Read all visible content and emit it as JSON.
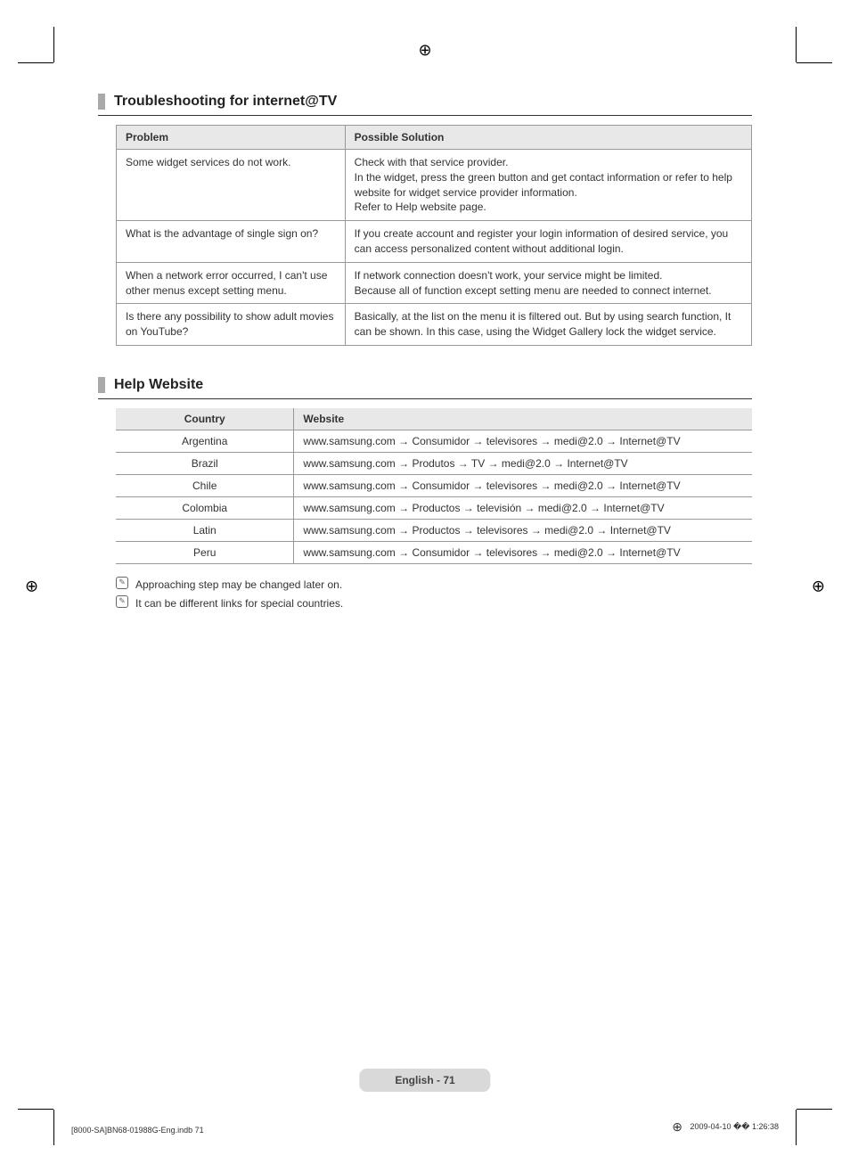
{
  "colors": {
    "text": "#333333",
    "headerBg": "#e8e8e8",
    "border": "#999999",
    "sectionBar": "#a9a9a9",
    "footerBg": "#d9d9d9",
    "background": "#ffffff"
  },
  "section1": {
    "title": "Troubleshooting for internet@TV",
    "headers": {
      "problem": "Problem",
      "solution": "Possible Solution"
    },
    "rows": [
      {
        "problem": "Some widget services do not work.",
        "solution": "Check with that service provider.\nIn the widget, press the green button and get contact information or refer to help website for widget service provider information.\nRefer to Help website page."
      },
      {
        "problem": "What is the advantage of single sign on?",
        "solution": "If you create account and register your login information of desired service, you can access personalized content without additional login."
      },
      {
        "problem": "When a network error occurred, I can't use other menus except setting menu.",
        "solution": "If network connection doesn't work, your service might be limited.\nBecause all of function except setting menu are needed to connect internet."
      },
      {
        "problem": "Is there any possibility to show adult movies on YouTube?",
        "solution": "Basically, at the list on the menu it is filtered out. But by using search function, It can be shown. In this case, using the Widget Gallery lock the widget service."
      }
    ]
  },
  "section2": {
    "title": "Help Website",
    "headers": {
      "country": "Country",
      "website": "Website"
    },
    "rows": [
      {
        "country": "Argentina",
        "website": "www.samsung.com → Consumidor → televisores → medi@2.0 → Internet@TV"
      },
      {
        "country": "Brazil",
        "website": "www.samsung.com → Produtos → TV → medi@2.0 → Internet@TV"
      },
      {
        "country": "Chile",
        "website": "www.samsung.com → Consumidor → televisores → medi@2.0 → Internet@TV"
      },
      {
        "country": "Colombia",
        "website": "www.samsung.com → Productos → televisión → medi@2.0 → Internet@TV"
      },
      {
        "country": "Latin",
        "website": "www.samsung.com → Productos → televisores → medi@2.0 → Internet@TV"
      },
      {
        "country": "Peru",
        "website": "www.samsung.com → Consumidor → televisores → medi@2.0 → Internet@TV"
      }
    ]
  },
  "notes": [
    "Approaching step may be changed later on.",
    "It can be different links for special countries."
  ],
  "footer": "English - 71",
  "meta": {
    "left": "[8000-SA]BN68-01988G-Eng.indb   71",
    "right": "2009-04-10   �� 1:26:38"
  }
}
